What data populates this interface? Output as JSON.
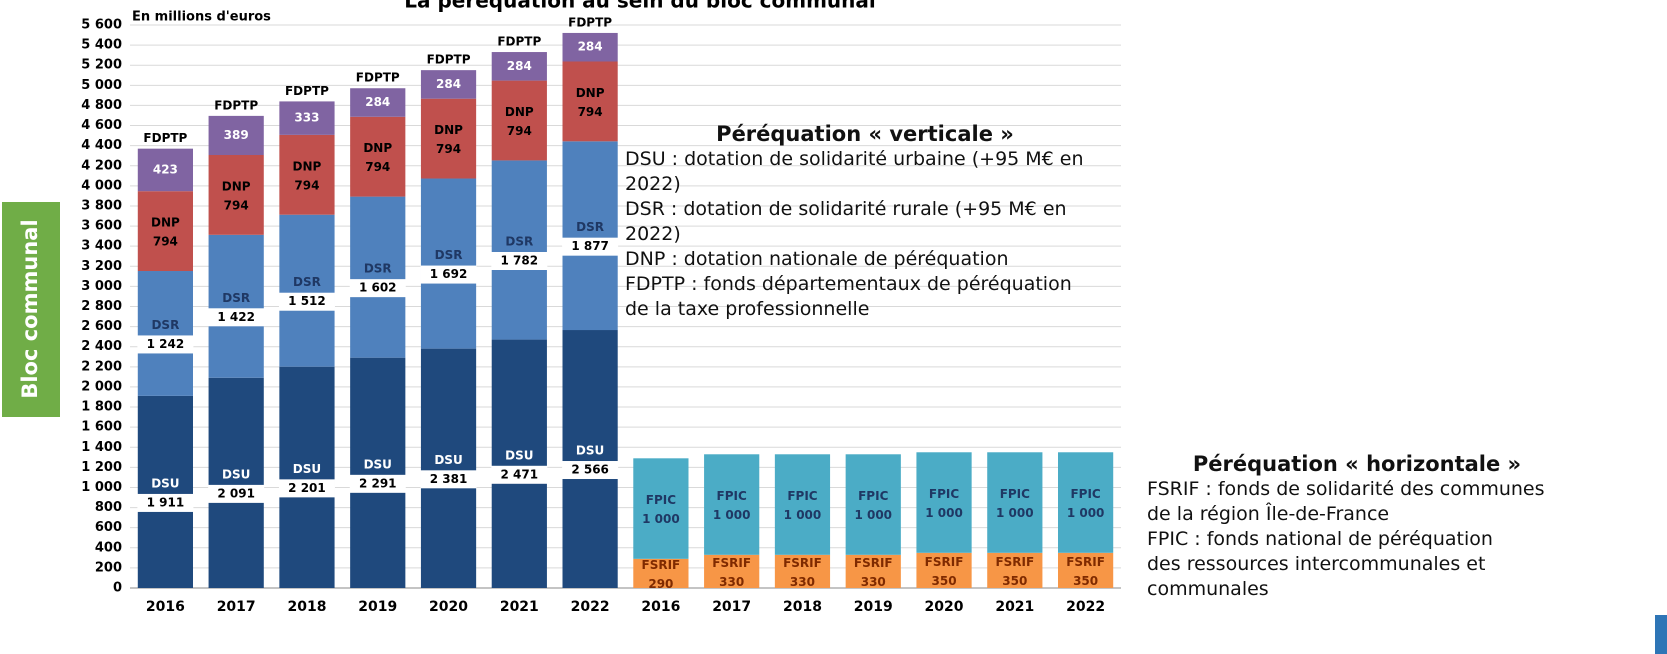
{
  "chart_data": {
    "type": "stacked-bar",
    "title": "La péréquation au sein du bloc communal",
    "unit_label": "En millions d'euros",
    "side_label": "Bloc communal",
    "categories": [
      "2016",
      "2017",
      "2018",
      "2019",
      "2020",
      "2021",
      "2022",
      "2016",
      "2017",
      "2018",
      "2019",
      "2020",
      "2021",
      "2022"
    ],
    "ylim": [
      0,
      5600
    ],
    "yticks": [
      0,
      200,
      400,
      600,
      800,
      {
        "value": 1000,
        "label": "1 000"
      },
      {
        "value": 1200,
        "label": "1 200"
      },
      {
        "value": 1400,
        "label": "1 400"
      },
      {
        "value": 1600,
        "label": "1 600"
      },
      {
        "value": 1800,
        "label": "1 800"
      },
      {
        "value": 2000,
        "label": "2 000"
      },
      {
        "value": 2200,
        "label": "2 200"
      },
      {
        "value": 2400,
        "label": "2 400"
      },
      {
        "value": 2600,
        "label": "2 600"
      },
      {
        "value": 2800,
        "label": "2 800"
      },
      {
        "value": 3000,
        "label": "3 000"
      },
      {
        "value": 3200,
        "label": "3 200"
      },
      {
        "value": 3400,
        "label": "3 400"
      },
      {
        "value": 3600,
        "label": "3 600"
      },
      {
        "value": 3800,
        "label": "3 800"
      },
      {
        "value": 4000,
        "label": "4 000"
      },
      {
        "value": 4200,
        "label": "4 200"
      },
      {
        "value": 4400,
        "label": "4 400"
      },
      {
        "value": 4600,
        "label": "4 600"
      },
      {
        "value": 4800,
        "label": "4 800"
      },
      {
        "value": 5000,
        "label": "5 000"
      },
      {
        "value": 5200,
        "label": "5 200"
      },
      {
        "value": 5400,
        "label": "5 400"
      },
      {
        "value": 5600,
        "label": "5 600"
      }
    ],
    "grid": true,
    "series": [
      {
        "name": "DSU",
        "color": "#1f497d",
        "values": [
          1911,
          2091,
          2201,
          2291,
          2381,
          2471,
          2566,
          null,
          null,
          null,
          null,
          null,
          null,
          null
        ],
        "value_labels": [
          "1 911",
          "2 091",
          "2 201",
          "2 291",
          "2 381",
          "2 471",
          "2 566",
          null,
          null,
          null,
          null,
          null,
          null,
          null
        ]
      },
      {
        "name": "DSR",
        "color": "#4f81bd",
        "values": [
          1242,
          1422,
          1512,
          1602,
          1692,
          1782,
          1877,
          null,
          null,
          null,
          null,
          null,
          null,
          null
        ],
        "value_labels": [
          "1 242",
          "1 422",
          "1 512",
          "1 602",
          "1 692",
          "1 782",
          "1 877",
          null,
          null,
          null,
          null,
          null,
          null,
          null
        ]
      },
      {
        "name": "DNP",
        "color": "#c0504d",
        "values": [
          794,
          794,
          794,
          794,
          794,
          794,
          794,
          null,
          null,
          null,
          null,
          null,
          null,
          null
        ]
      },
      {
        "name": "FDPTP",
        "color": "#8064a2",
        "values": [
          423,
          389,
          333,
          284,
          284,
          284,
          284,
          null,
          null,
          null,
          null,
          null,
          null,
          null
        ]
      },
      {
        "name": "FSRIF",
        "color": "#f79646",
        "values": [
          null,
          null,
          null,
          null,
          null,
          null,
          null,
          290,
          330,
          330,
          330,
          350,
          350,
          350
        ]
      },
      {
        "name": "FPIC",
        "color": "#4bacc6",
        "values": [
          null,
          null,
          null,
          null,
          null,
          null,
          null,
          1000,
          1000,
          1000,
          1000,
          1000,
          1000,
          1000
        ],
        "value_labels": [
          null,
          null,
          null,
          null,
          null,
          null,
          null,
          "1 000",
          "1 000",
          "1 000",
          "1 000",
          "1 000",
          "1 000",
          "1 000"
        ]
      }
    ],
    "notes": [
      {
        "title": "Péréquation « verticale »",
        "lines": [
          "DSU : dotation de solidarité urbaine (+95 M€ en 2022)",
          "DSR : dotation de solidarité rurale (+95 M€ en 2022)",
          "DNP : dotation nationale de péréquation",
          "FDPTP : fonds départementaux de péréquation",
          "de la taxe professionnelle"
        ]
      },
      {
        "title": "Péréquation « horizontale »",
        "lines": [
          "FSRIF : fonds de solidarité des communes",
          "de la région Île-de-France",
          "FPIC : fonds national de péréquation",
          "des ressources intercommunales et communales"
        ]
      }
    ]
  }
}
